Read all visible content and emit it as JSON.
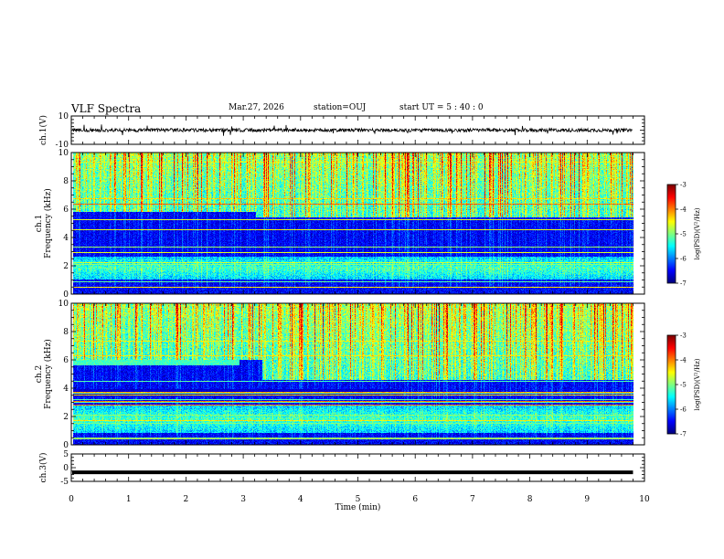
{
  "header": {
    "title": "VLF Spectra",
    "date": "Mar.27, 2026",
    "station": "station=OUJ",
    "start": "start  UT =   5 : 40 : 0"
  },
  "chart_data": [
    {
      "type": "line",
      "name": "ch.1 waveform",
      "ylabel": "ch.1(V)",
      "ylim": [
        -10,
        10
      ],
      "yticks": [
        "10",
        "-10"
      ],
      "xlim": [
        0,
        10
      ],
      "baseline": 0,
      "noise_amplitude": 1.2,
      "trace_end_min": 9.8
    },
    {
      "type": "heatmap",
      "name": "ch.1 spectrogram",
      "ylabel": "ch.1\nFrequency (kHz)",
      "ylim": [
        0,
        10
      ],
      "yticks": [
        "0",
        "2",
        "4",
        "6",
        "8",
        "10"
      ],
      "xlim": [
        0,
        10
      ],
      "data_end_min": 9.8,
      "upper_band_edge_khz": 5.8,
      "upper_band_drop_min": 3.2,
      "upper_band_edge_after_khz": 5.4,
      "lower_band_khz": [
        1.0,
        2.6
      ],
      "colorbar": {
        "label": "log(PSD)(V²/Hz)",
        "range": [
          -7,
          -3
        ],
        "ticks": [
          "-3",
          "-4",
          "-5",
          "-6",
          "-7"
        ]
      }
    },
    {
      "type": "heatmap",
      "name": "ch.2 spectrogram",
      "ylabel": "ch.2\nFrequency (kHz)",
      "ylim": [
        0,
        10
      ],
      "yticks": [
        "0",
        "2",
        "4",
        "6",
        "8",
        "10"
      ],
      "xlim": [
        0,
        10
      ],
      "data_end_min": 9.8,
      "upper_band_edge_khz": 6.0,
      "upper_band_drop_min": 3.3,
      "upper_band_edge_after_khz": 4.6,
      "green_band_khz": [
        5.6,
        6.2
      ],
      "green_band_end_min": 2.9,
      "lower_band_khz": [
        0.8,
        2.8
      ],
      "step_min": 5.75,
      "step_khz": 3.4,
      "colorbar": {
        "label": "log(PSD)(V²/Hz)",
        "range": [
          -7,
          -3
        ],
        "ticks": [
          "-3",
          "-4",
          "-5",
          "-6",
          "-7"
        ]
      }
    },
    {
      "type": "line",
      "name": "ch.3 waveform",
      "ylabel": "ch.3(V)",
      "ylim": [
        -5,
        5
      ],
      "yticks": [
        "5",
        "0",
        "-5"
      ],
      "xlim": [
        0,
        10
      ],
      "baseline": -1.7,
      "trace_end_min": 9.8
    }
  ],
  "xaxis": {
    "label": "Time  (min)",
    "ticks": [
      "0",
      "1",
      "2",
      "3",
      "4",
      "5",
      "6",
      "7",
      "8",
      "9",
      "10"
    ]
  },
  "colors": {
    "axis": "#000000",
    "background": "#ffffff"
  }
}
